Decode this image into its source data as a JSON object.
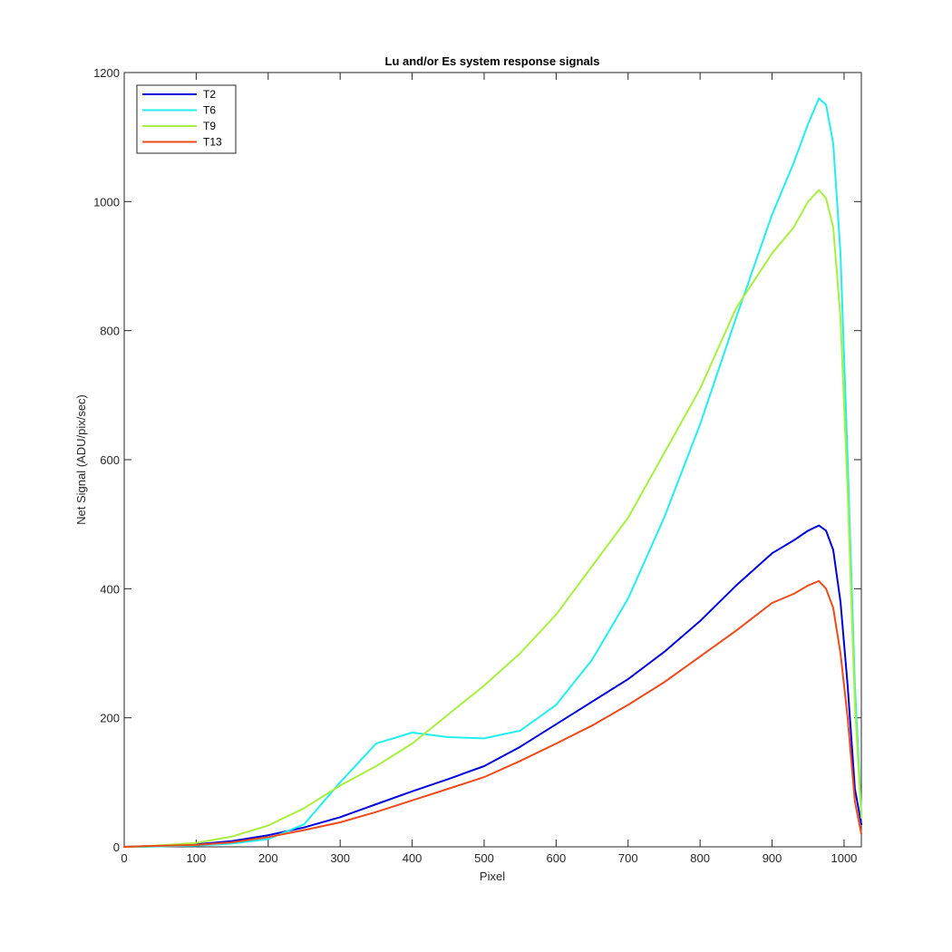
{
  "chart_data": {
    "type": "line",
    "title": "Lu and/or Es system response signals",
    "xlabel": "Pixel",
    "ylabel": "Net Signal (ADU/pix/sec)",
    "xlim": [
      0,
      1024
    ],
    "ylim": [
      0,
      1200
    ],
    "xticks": [
      0,
      100,
      200,
      300,
      400,
      500,
      600,
      700,
      800,
      900,
      1000
    ],
    "yticks": [
      0,
      200,
      400,
      600,
      800,
      1000,
      1200
    ],
    "grid": false,
    "legend_position": "top-left",
    "x": [
      0,
      30,
      60,
      100,
      150,
      200,
      250,
      300,
      350,
      400,
      450,
      500,
      550,
      600,
      650,
      700,
      750,
      800,
      850,
      900,
      930,
      950,
      965,
      975,
      985,
      995,
      1005,
      1015,
      1024
    ],
    "series": [
      {
        "name": "T2",
        "color": "#0000dd",
        "values": [
          0,
          1,
          2,
          4,
          9,
          18,
          30,
          46,
          66,
          86,
          105,
          125,
          155,
          190,
          225,
          260,
          302,
          350,
          405,
          455,
          475,
          490,
          498,
          490,
          460,
          380,
          250,
          90,
          35
        ]
      },
      {
        "name": "T6",
        "color": "#22eeee",
        "values": [
          0,
          0,
          1,
          2,
          5,
          12,
          35,
          100,
          160,
          177,
          170,
          168,
          180,
          220,
          290,
          385,
          510,
          655,
          820,
          980,
          1060,
          1120,
          1160,
          1150,
          1090,
          920,
          600,
          250,
          50
        ]
      },
      {
        "name": "T9",
        "color": "#a8f040",
        "values": [
          0,
          1,
          3,
          6,
          16,
          33,
          60,
          95,
          125,
          160,
          205,
          250,
          300,
          360,
          435,
          510,
          610,
          710,
          835,
          920,
          960,
          1000,
          1018,
          1005,
          960,
          820,
          550,
          220,
          45
        ]
      },
      {
        "name": "T13",
        "color": "#ee4a1a",
        "values": [
          0,
          1,
          2,
          3,
          7,
          15,
          26,
          38,
          54,
          72,
          90,
          108,
          133,
          160,
          188,
          220,
          255,
          295,
          335,
          378,
          392,
          405,
          412,
          400,
          370,
          300,
          200,
          70,
          20
        ]
      }
    ]
  }
}
